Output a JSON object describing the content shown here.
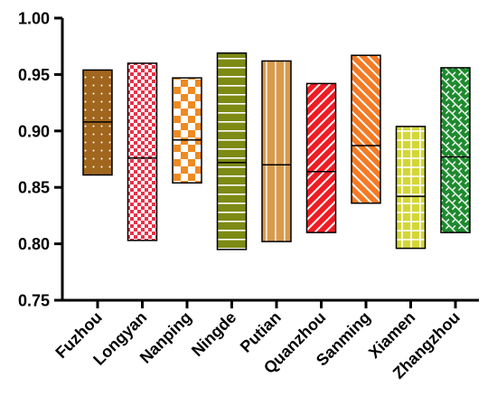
{
  "chart_data": {
    "type": "bar",
    "subtype": "floating-range",
    "title": "",
    "xlabel": "",
    "ylabel": "",
    "ylim": [
      0.75,
      1.0
    ],
    "yticks": [
      "0.75",
      "0.80",
      "0.85",
      "0.90",
      "0.95",
      "1.00"
    ],
    "grid": false,
    "legend": "none",
    "categories": [
      "Fuzhou",
      "Longyan",
      "Nanping",
      "Ningde",
      "Putian",
      "Quanzhou",
      "Sanming",
      "Xiamen",
      "Zhangzhou"
    ],
    "low": [
      0.861,
      0.803,
      0.854,
      0.795,
      0.802,
      0.81,
      0.836,
      0.796,
      0.81
    ],
    "high": [
      0.954,
      0.96,
      0.947,
      0.969,
      0.962,
      0.942,
      0.967,
      0.904,
      0.956
    ],
    "median": [
      0.908,
      0.876,
      0.892,
      0.872,
      0.87,
      0.864,
      0.887,
      0.842,
      0.877
    ],
    "colors": [
      "#a0661e",
      "#e8324a",
      "#ee8a22",
      "#7d8a14",
      "#d99a4c",
      "#ee1c24",
      "#f47a24",
      "#d4d636",
      "#1e8a2e"
    ],
    "patterns": [
      "dots",
      "checker-fine",
      "checker-large",
      "horizontal",
      "vertical",
      "diagonal",
      "diagonal",
      "grid",
      "brick"
    ]
  }
}
